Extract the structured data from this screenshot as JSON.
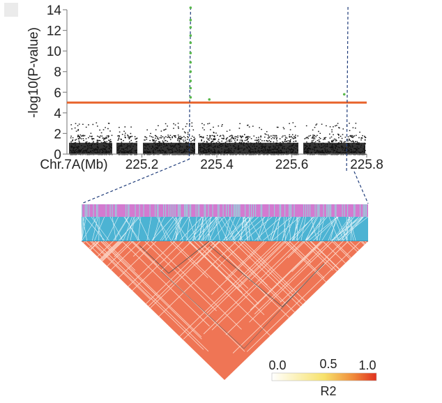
{
  "chart_data": [
    {
      "type": "scatter",
      "subtype": "manhattan",
      "ylabel": "-log10(P-value)",
      "xlabel": "Chr.7A(Mb)",
      "ylim": [
        0,
        14
      ],
      "xlim": [
        225.0,
        225.8
      ],
      "yticks": [
        0,
        2,
        4,
        6,
        8,
        10,
        12,
        14
      ],
      "xticks": [
        "225.2",
        "225.4",
        "225.6",
        "225.8"
      ],
      "xtick_values": [
        225.2,
        225.4,
        225.6,
        225.8
      ],
      "threshold": 5,
      "threshold_color": "#e8632b",
      "point_color": "#111111",
      "significant_color": "#57b84a",
      "significant_points": [
        {
          "x": 225.33,
          "y": 14.2
        },
        {
          "x": 225.33,
          "y": 13.0
        },
        {
          "x": 225.33,
          "y": 12.3
        },
        {
          "x": 225.33,
          "y": 11.5
        },
        {
          "x": 225.33,
          "y": 10.8
        },
        {
          "x": 225.33,
          "y": 9.8
        },
        {
          "x": 225.33,
          "y": 8.9
        },
        {
          "x": 225.33,
          "y": 8.0
        },
        {
          "x": 225.33,
          "y": 7.1
        },
        {
          "x": 225.33,
          "y": 6.4
        },
        {
          "x": 225.33,
          "y": 5.5
        },
        {
          "x": 225.38,
          "y": 5.3
        },
        {
          "x": 225.74,
          "y": 5.8
        }
      ],
      "marker_positions": [
        225.33,
        225.75
      ]
    },
    {
      "type": "heatmap",
      "subtype": "ld-triangle",
      "colorbar_label": "R2",
      "colorbar_ticks": [
        "0.0",
        "0.5",
        "1.0"
      ],
      "colorbar_values": [
        0.0,
        0.5,
        1.0
      ],
      "colorbar_colors": [
        "#ffffff",
        "#f7e26b",
        "#f08a3a",
        "#e0301e"
      ],
      "band_colors": {
        "snp_track": "#d37ad0",
        "snp_track_alt": "#9ec6d9",
        "link_band": "#4cb3d3"
      }
    }
  ]
}
